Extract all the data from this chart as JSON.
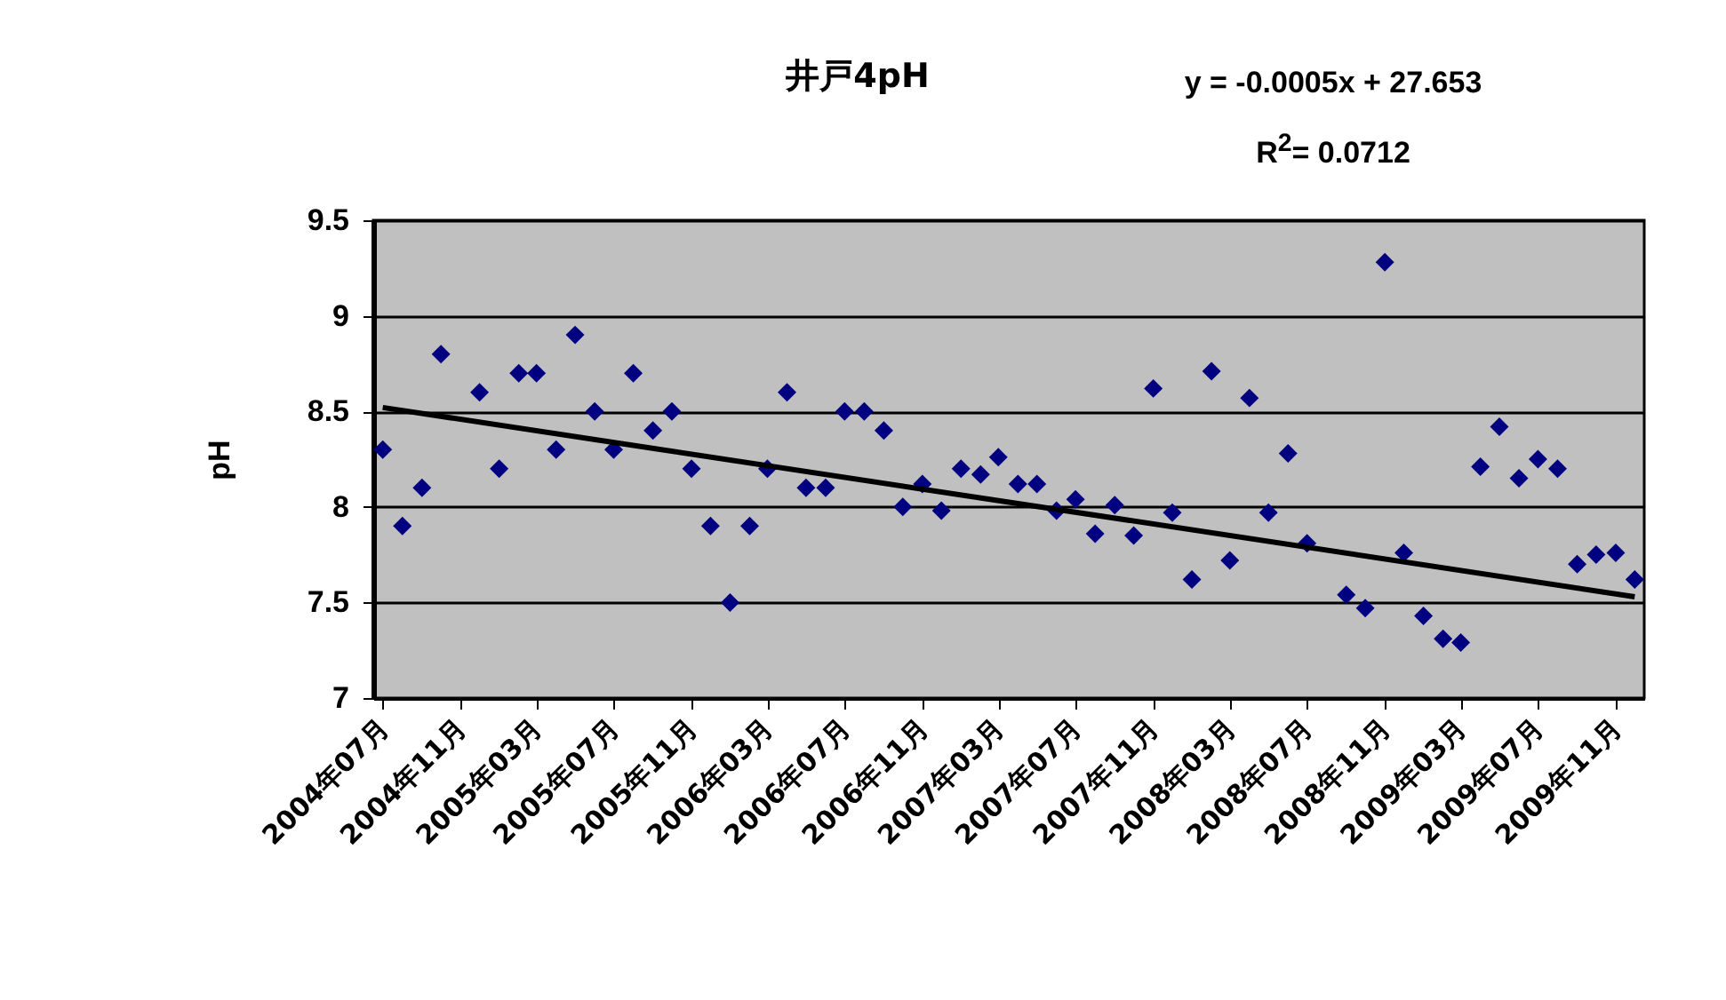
{
  "chart_data": {
    "type": "scatter",
    "title": "井戸4pH",
    "ylabel": "pH",
    "annotations": [
      "y = -0.0005x + 27.653",
      "R$^{2}$= 0.0712"
    ],
    "xlim": [
      "2004-06-16",
      "2009-12-16"
    ],
    "xticks": [
      {
        "value": "2004-07",
        "label": "2004年07月"
      },
      {
        "value": "2004-11",
        "label": "2004年11月"
      },
      {
        "value": "2005-03",
        "label": "2005年03月"
      },
      {
        "value": "2005-07",
        "label": "2005年07月"
      },
      {
        "value": "2005-11",
        "label": "2005年11月"
      },
      {
        "value": "2006-03",
        "label": "2006年03月"
      },
      {
        "value": "2006-07",
        "label": "2006年07月"
      },
      {
        "value": "2006-11",
        "label": "2006年11月"
      },
      {
        "value": "2007-03",
        "label": "2007年03月"
      },
      {
        "value": "2007-07",
        "label": "2007年07月"
      },
      {
        "value": "2007-11",
        "label": "2007年11月"
      },
      {
        "value": "2008-03",
        "label": "2008年03月"
      },
      {
        "value": "2008-07",
        "label": "2008年07月"
      },
      {
        "value": "2008-11",
        "label": "2008年11月"
      },
      {
        "value": "2009-03",
        "label": "2009年03月"
      },
      {
        "value": "2009-07",
        "label": "2009年07月"
      },
      {
        "value": "2009-11",
        "label": "2009年11月"
      }
    ],
    "ylim": [
      7,
      9.5
    ],
    "yticks": [
      7,
      7.5,
      8,
      8.5,
      9,
      9.5
    ],
    "grid": "y",
    "series": [
      {
        "color": "#000080",
        "marker": "diamond",
        "x": [
          "2004-07",
          "2004-08",
          "2004-09",
          "2004-10",
          "2004-12",
          "2005-01",
          "2005-02",
          "2005-03",
          "2005-04",
          "2005-05",
          "2005-06",
          "2005-07",
          "2005-08",
          "2005-09",
          "2005-10",
          "2005-11",
          "2005-12",
          "2006-01",
          "2006-02",
          "2006-03",
          "2006-04",
          "2006-05",
          "2006-06",
          "2006-07",
          "2006-08",
          "2006-09",
          "2006-10",
          "2006-11",
          "2006-12",
          "2007-01",
          "2007-02",
          "2007-03",
          "2007-04",
          "2007-05",
          "2007-06",
          "2007-07",
          "2007-08",
          "2007-09",
          "2007-10",
          "2007-11",
          "2007-12",
          "2008-01",
          "2008-02",
          "2008-03",
          "2008-04",
          "2008-05",
          "2008-06",
          "2008-07",
          "2008-09",
          "2008-10",
          "2008-11",
          "2008-12",
          "2009-01",
          "2009-02",
          "2009-03",
          "2009-04",
          "2009-05",
          "2009-06",
          "2009-07",
          "2009-08",
          "2009-09",
          "2009-10",
          "2009-11",
          "2009-12"
        ],
        "values": [
          8.3,
          7.9,
          8.1,
          8.8,
          8.6,
          8.2,
          8.7,
          8.7,
          8.3,
          8.9,
          8.5,
          8.3,
          8.7,
          8.4,
          8.5,
          8.2,
          7.9,
          7.5,
          7.9,
          8.2,
          8.6,
          8.1,
          8.1,
          8.5,
          8.5,
          8.4,
          8.0,
          8.12,
          7.98,
          8.2,
          8.17,
          8.26,
          8.12,
          8.12,
          7.98,
          8.04,
          7.86,
          8.01,
          7.85,
          8.62,
          7.97,
          7.62,
          8.71,
          7.72,
          8.57,
          7.97,
          8.28,
          7.81,
          7.54,
          7.47,
          9.28,
          7.76,
          7.43,
          7.31,
          7.29,
          8.21,
          8.42,
          8.15,
          8.25,
          8.2,
          7.7,
          7.75,
          7.76,
          7.62
        ]
      },
      {
        "type": "line",
        "color": "#000000",
        "x": [
          "2004-07",
          "2009-12"
        ],
        "values": [
          8.52,
          7.53
        ]
      }
    ]
  }
}
